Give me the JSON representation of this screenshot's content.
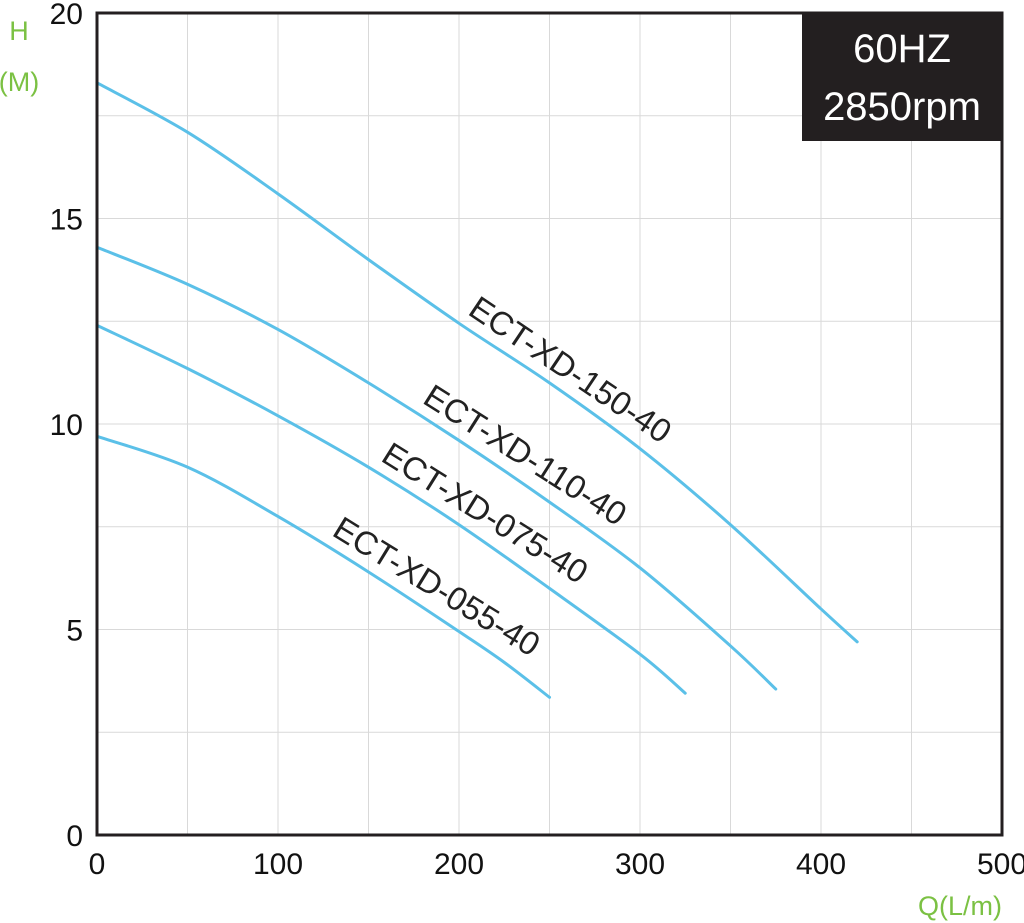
{
  "chart_data": {
    "type": "line",
    "x_label": "Q(L/m)",
    "y_label_line1": "H",
    "y_label_line2": "(M)",
    "xlim": [
      0,
      500
    ],
    "ylim": [
      0,
      20
    ],
    "x_ticks": [
      0,
      100,
      200,
      300,
      400,
      500
    ],
    "y_ticks": [
      0,
      5,
      10,
      15,
      20
    ],
    "grid": true,
    "line_color": "#5bc0e8",
    "badge": {
      "line1": "60HZ",
      "line2": "2850rpm",
      "background": "#231f20",
      "placement": "top-right"
    },
    "series": [
      {
        "name": "ECT-XD-150-40",
        "points": [
          [
            0,
            18.3
          ],
          [
            50,
            17.1
          ],
          [
            100,
            15.6
          ],
          [
            150,
            14.0
          ],
          [
            200,
            12.45
          ],
          [
            250,
            11.0
          ],
          [
            300,
            9.4
          ],
          [
            350,
            7.55
          ],
          [
            400,
            5.5
          ],
          [
            420,
            4.7
          ]
        ],
        "label_at": 195
      },
      {
        "name": "ECT-XD-110-40",
        "points": [
          [
            0,
            14.3
          ],
          [
            50,
            13.4
          ],
          [
            100,
            12.3
          ],
          [
            150,
            11.0
          ],
          [
            200,
            9.6
          ],
          [
            250,
            8.1
          ],
          [
            300,
            6.5
          ],
          [
            350,
            4.6
          ],
          [
            375,
            3.55
          ]
        ],
        "label_at": 170
      },
      {
        "name": "ECT-XD-075-40",
        "points": [
          [
            0,
            12.4
          ],
          [
            50,
            11.35
          ],
          [
            100,
            10.2
          ],
          [
            150,
            8.95
          ],
          [
            200,
            7.55
          ],
          [
            250,
            6.0
          ],
          [
            300,
            4.4
          ],
          [
            325,
            3.45
          ]
        ],
        "label_at": 147
      },
      {
        "name": "ECT-XD-055-40",
        "points": [
          [
            0,
            9.7
          ],
          [
            50,
            8.95
          ],
          [
            100,
            7.75
          ],
          [
            150,
            6.4
          ],
          [
            200,
            4.95
          ],
          [
            225,
            4.2
          ],
          [
            250,
            3.35
          ]
        ],
        "label_at": 120
      }
    ]
  }
}
